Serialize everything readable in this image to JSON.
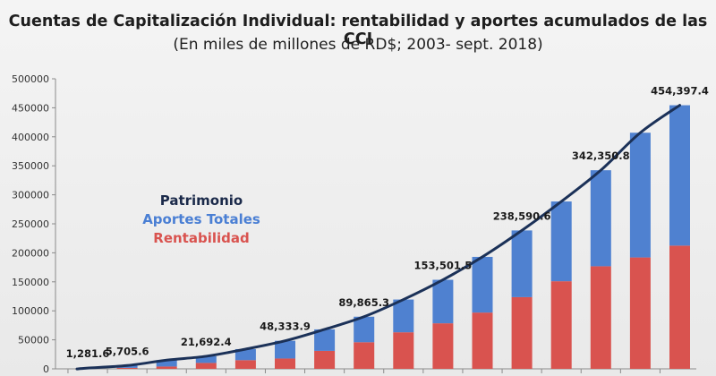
{
  "chart_data": {
    "type": "bar",
    "title": "Cuentas de Capitalización Individual: rentabilidad y aportes acumulados de las CCI",
    "subtitle": "(En miles de millones de RD$; 2003- sept. 2018)",
    "ylim": [
      0,
      500000
    ],
    "yticks": [
      "0",
      "50000",
      "100000",
      "150000",
      "200000",
      "250000",
      "300000",
      "350000",
      "400000",
      "450000",
      "500000"
    ],
    "grid": false,
    "legend_items": [
      "Patrimonio",
      "Aportes Totales",
      "Rentabilidad"
    ],
    "series": [
      {
        "name": "Aportes Totales",
        "color": "#4f81d0",
        "values": [
          1000,
          4000,
          11000,
          11500,
          19000,
          30500,
          37000,
          44000,
          56500,
          75000,
          96000,
          115000,
          137500,
          165500,
          215000,
          242000
        ]
      },
      {
        "name": "Rentabilidad",
        "color": "#d9534f",
        "values": [
          281.6,
          1705.6,
          4000,
          10192.4,
          15000,
          17833.9,
          31000,
          45865.3,
          63000,
          78501.5,
          97000,
          123590.6,
          151000,
          176850.8,
          192000,
          212397.4
        ]
      }
    ],
    "patrimonio": {
      "name": "Patrimonio",
      "color": "#1b3158",
      "values": [
        1281.6,
        5705.6,
        15000,
        21692.4,
        34000,
        48333.9,
        68000,
        89865.3,
        119500,
        153501.5,
        193000,
        238590.6,
        288500,
        342350.8,
        407000,
        454397.4
      ]
    },
    "data_labels": [
      "1,281.6",
      "5,705.6",
      "21,692.4",
      "48,333.9",
      "89,865.3",
      "153,501.5",
      "238,590.6",
      "342,350.8",
      "454,397.4"
    ],
    "data_label_indices": [
      0,
      1,
      3,
      5,
      7,
      9,
      11,
      13,
      15
    ]
  }
}
